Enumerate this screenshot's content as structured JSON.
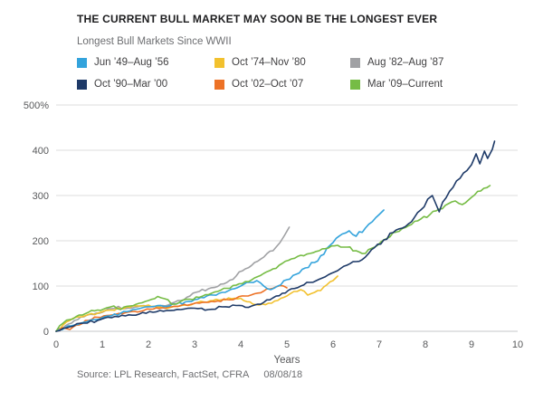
{
  "title": "THE CURRENT BULL MARKET MAY SOON BE THE LONGEST EVER",
  "subtitle": "Longest Bull Markets Since WWII",
  "source": {
    "text": "Source: LPL Research, FactSet, CFRA",
    "date": "08/08/18"
  },
  "chart_data": {
    "type": "line",
    "title": "THE CURRENT BULL MARKET MAY SOON BE THE LONGEST EVER",
    "subtitle": "Longest Bull Markets Since WWII",
    "xlabel": "Years",
    "ylabel": "",
    "xlim": [
      0,
      10
    ],
    "ylim": [
      0,
      500
    ],
    "x_ticks": [
      0,
      1,
      2,
      3,
      4,
      5,
      6,
      7,
      8,
      9,
      10
    ],
    "x_tick_labels": [
      "0",
      "1",
      "2",
      "3",
      "4",
      "5",
      "6",
      "7",
      "8",
      "9",
      "10"
    ],
    "y_ticks": [
      0,
      100,
      200,
      300,
      400,
      500
    ],
    "y_tick_labels": [
      "0",
      "100",
      "200",
      "300",
      "400",
      "500%"
    ],
    "grid": "horizontal",
    "legend_position": "top",
    "series": [
      {
        "name": "Jun ’49–Aug ’56",
        "color": "#33a3dc",
        "points": [
          [
            0,
            0
          ],
          [
            0.2,
            8
          ],
          [
            0.4,
            14
          ],
          [
            0.6,
            20
          ],
          [
            0.8,
            26
          ],
          [
            1,
            30
          ],
          [
            1.2,
            34
          ],
          [
            1.4,
            40
          ],
          [
            1.6,
            45
          ],
          [
            1.8,
            50
          ],
          [
            2,
            54
          ],
          [
            2.2,
            57
          ],
          [
            2.4,
            55
          ],
          [
            2.6,
            60
          ],
          [
            2.8,
            65
          ],
          [
            3,
            70
          ],
          [
            3.2,
            74
          ],
          [
            3.4,
            80
          ],
          [
            3.6,
            86
          ],
          [
            3.8,
            93
          ],
          [
            4,
            100
          ],
          [
            4.2,
            108
          ],
          [
            4.35,
            112
          ],
          [
            4.5,
            100
          ],
          [
            4.65,
            92
          ],
          [
            4.8,
            100
          ],
          [
            5,
            114
          ],
          [
            5.2,
            126
          ],
          [
            5.4,
            140
          ],
          [
            5.6,
            152
          ],
          [
            5.8,
            170
          ],
          [
            6,
            196
          ],
          [
            6.2,
            215
          ],
          [
            6.35,
            222
          ],
          [
            6.5,
            210
          ],
          [
            6.7,
            228
          ],
          [
            6.85,
            242
          ],
          [
            7,
            258
          ],
          [
            7.1,
            268
          ]
        ]
      },
      {
        "name": "Oct ’74–Nov ’80",
        "color": "#f2c12e",
        "points": [
          [
            0,
            0
          ],
          [
            0.15,
            14
          ],
          [
            0.3,
            24
          ],
          [
            0.5,
            32
          ],
          [
            0.7,
            37
          ],
          [
            0.9,
            40
          ],
          [
            1,
            43
          ],
          [
            1.2,
            47
          ],
          [
            1.4,
            50
          ],
          [
            1.6,
            53
          ],
          [
            1.8,
            56
          ],
          [
            2,
            58
          ],
          [
            2.2,
            53
          ],
          [
            2.4,
            50
          ],
          [
            2.6,
            55
          ],
          [
            2.8,
            58
          ],
          [
            3,
            62
          ],
          [
            3.2,
            65
          ],
          [
            3.4,
            68
          ],
          [
            3.6,
            70
          ],
          [
            3.8,
            72
          ],
          [
            4,
            73
          ],
          [
            4.2,
            65
          ],
          [
            4.4,
            58
          ],
          [
            4.6,
            62
          ],
          [
            4.8,
            68
          ],
          [
            5,
            78
          ],
          [
            5.15,
            88
          ],
          [
            5.3,
            92
          ],
          [
            5.45,
            80
          ],
          [
            5.6,
            86
          ],
          [
            5.8,
            98
          ],
          [
            6,
            112
          ],
          [
            6.1,
            122
          ]
        ]
      },
      {
        "name": "Aug ’82–Aug ’87",
        "color": "#a0a1a4",
        "points": [
          [
            0,
            0
          ],
          [
            0.2,
            12
          ],
          [
            0.4,
            24
          ],
          [
            0.6,
            32
          ],
          [
            0.8,
            37
          ],
          [
            1,
            42
          ],
          [
            1.2,
            50
          ],
          [
            1.35,
            55
          ],
          [
            1.5,
            50
          ],
          [
            1.7,
            53
          ],
          [
            1.9,
            57
          ],
          [
            2.1,
            54
          ],
          [
            2.3,
            57
          ],
          [
            2.5,
            62
          ],
          [
            2.7,
            68
          ],
          [
            2.9,
            78
          ],
          [
            3.1,
            88
          ],
          [
            3.3,
            94
          ],
          [
            3.5,
            99
          ],
          [
            3.7,
            108
          ],
          [
            3.9,
            122
          ],
          [
            4.1,
            138
          ],
          [
            4.3,
            152
          ],
          [
            4.5,
            164
          ],
          [
            4.7,
            178
          ],
          [
            4.85,
            196
          ],
          [
            4.95,
            212
          ],
          [
            5.05,
            230
          ]
        ]
      },
      {
        "name": "Oct ’90–Mar ’00",
        "color": "#1e3a68",
        "points": [
          [
            0,
            0
          ],
          [
            0.3,
            10
          ],
          [
            0.6,
            18
          ],
          [
            0.9,
            24
          ],
          [
            1.2,
            30
          ],
          [
            1.5,
            34
          ],
          [
            1.8,
            38
          ],
          [
            2.1,
            42
          ],
          [
            2.4,
            46
          ],
          [
            2.7,
            48
          ],
          [
            3,
            51
          ],
          [
            3.3,
            48
          ],
          [
            3.6,
            54
          ],
          [
            3.9,
            57
          ],
          [
            4.1,
            53
          ],
          [
            4.3,
            58
          ],
          [
            4.5,
            64
          ],
          [
            4.7,
            74
          ],
          [
            4.9,
            84
          ],
          [
            5.1,
            94
          ],
          [
            5.3,
            100
          ],
          [
            5.5,
            108
          ],
          [
            5.7,
            115
          ],
          [
            5.9,
            125
          ],
          [
            6.1,
            134
          ],
          [
            6.3,
            146
          ],
          [
            6.5,
            154
          ],
          [
            6.7,
            164
          ],
          [
            6.9,
            185
          ],
          [
            7.1,
            202
          ],
          [
            7.3,
            218
          ],
          [
            7.5,
            228
          ],
          [
            7.7,
            242
          ],
          [
            7.9,
            268
          ],
          [
            8.05,
            292
          ],
          [
            8.15,
            300
          ],
          [
            8.3,
            264
          ],
          [
            8.45,
            295
          ],
          [
            8.6,
            318
          ],
          [
            8.75,
            338
          ],
          [
            8.9,
            355
          ],
          [
            9,
            368
          ],
          [
            9.1,
            392
          ],
          [
            9.18,
            370
          ],
          [
            9.28,
            398
          ],
          [
            9.35,
            382
          ],
          [
            9.45,
            402
          ],
          [
            9.5,
            420
          ]
        ]
      },
      {
        "name": "Oct ’02–Oct ’07",
        "color": "#ed7226",
        "points": [
          [
            0,
            0
          ],
          [
            0.15,
            8
          ],
          [
            0.3,
            4
          ],
          [
            0.5,
            14
          ],
          [
            0.7,
            24
          ],
          [
            0.9,
            31
          ],
          [
            1.1,
            35
          ],
          [
            1.3,
            38
          ],
          [
            1.5,
            41
          ],
          [
            1.7,
            44
          ],
          [
            1.9,
            46
          ],
          [
            2.1,
            49
          ],
          [
            2.3,
            52
          ],
          [
            2.5,
            54
          ],
          [
            2.7,
            57
          ],
          [
            2.9,
            59
          ],
          [
            3.1,
            62
          ],
          [
            3.3,
            64
          ],
          [
            3.5,
            67
          ],
          [
            3.7,
            70
          ],
          [
            3.9,
            73
          ],
          [
            4.1,
            78
          ],
          [
            4.3,
            83
          ],
          [
            4.5,
            89
          ],
          [
            4.7,
            95
          ],
          [
            4.85,
            101
          ],
          [
            5,
            96
          ]
        ]
      },
      {
        "name": "Mar ’09–Current",
        "color": "#76bc45",
        "points": [
          [
            0,
            0
          ],
          [
            0.15,
            18
          ],
          [
            0.3,
            26
          ],
          [
            0.5,
            36
          ],
          [
            0.7,
            42
          ],
          [
            0.9,
            47
          ],
          [
            1.1,
            52
          ],
          [
            1.25,
            56
          ],
          [
            1.4,
            48
          ],
          [
            1.6,
            56
          ],
          [
            1.8,
            62
          ],
          [
            2,
            68
          ],
          [
            2.2,
            77
          ],
          [
            2.35,
            72
          ],
          [
            2.5,
            60
          ],
          [
            2.7,
            66
          ],
          [
            2.9,
            71
          ],
          [
            3.1,
            75
          ],
          [
            3.3,
            81
          ],
          [
            3.5,
            88
          ],
          [
            3.7,
            95
          ],
          [
            3.9,
            102
          ],
          [
            4.1,
            110
          ],
          [
            4.3,
            118
          ],
          [
            4.5,
            128
          ],
          [
            4.7,
            138
          ],
          [
            4.9,
            150
          ],
          [
            5.1,
            160
          ],
          [
            5.3,
            168
          ],
          [
            5.5,
            172
          ],
          [
            5.7,
            178
          ],
          [
            5.9,
            184
          ],
          [
            6.1,
            190
          ],
          [
            6.3,
            186
          ],
          [
            6.5,
            178
          ],
          [
            6.7,
            172
          ],
          [
            6.9,
            186
          ],
          [
            7.1,
            202
          ],
          [
            7.3,
            218
          ],
          [
            7.5,
            227
          ],
          [
            7.7,
            236
          ],
          [
            7.9,
            248
          ],
          [
            8.1,
            258
          ],
          [
            8.3,
            270
          ],
          [
            8.5,
            282
          ],
          [
            8.65,
            288
          ],
          [
            8.8,
            280
          ],
          [
            9,
            296
          ],
          [
            9.2,
            310
          ],
          [
            9.4,
            322
          ]
        ]
      }
    ]
  }
}
